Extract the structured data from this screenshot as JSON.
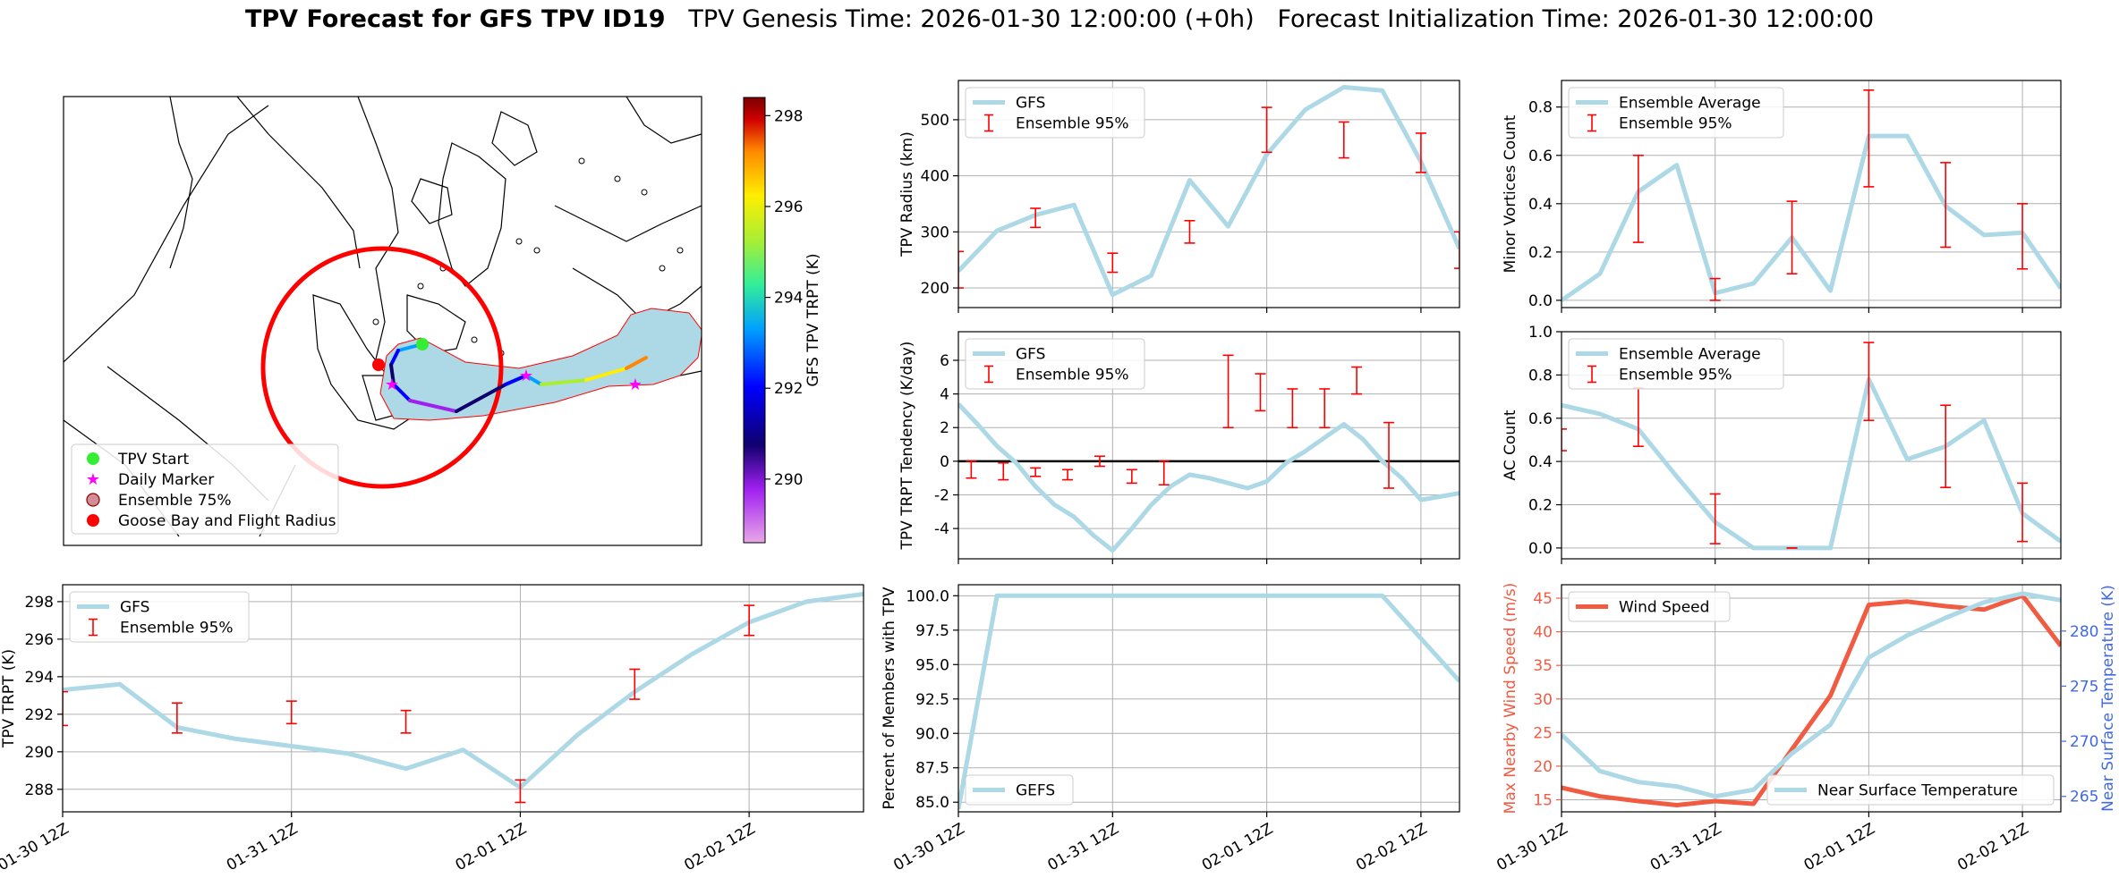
{
  "title": {
    "bold": "TPV Forecast for GFS TPV ID19",
    "genesis": "TPV Genesis Time: 2026-01-30 12:00:00 (+0h)",
    "init": "Forecast Initialization Time: 2026-01-30 12:00:00"
  },
  "colors": {
    "line": "#add8e6",
    "error": "#ff0000",
    "wind": "#f05b42",
    "temp_axis": "#4169e1",
    "circle": "#ff0000",
    "spread": "#add8e6",
    "daily": "#ff00ff",
    "start": "#33ee33"
  },
  "chart_data": [
    {
      "id": "map",
      "type": "map",
      "colorbar": {
        "label": "GFS TPV TRPT (K)",
        "range": [
          288.6,
          298.4
        ],
        "ticks": [
          290,
          292,
          294,
          296,
          298
        ]
      },
      "legend": [
        "TPV Start",
        "Daily Marker",
        "Ensemble 75%",
        "Goose Bay and Flight Radius"
      ],
      "track_trpt": [
        294.2,
        292.8,
        291.4,
        290.2,
        290.8,
        289.1,
        290.0,
        291.8,
        292.6,
        294.9,
        296.0,
        297.4
      ]
    },
    {
      "id": "radius",
      "type": "line",
      "ylabel": "TPV Radius (km)",
      "ylim": [
        165,
        570
      ],
      "yticks": [
        200,
        300,
        400,
        500
      ],
      "legend": [
        "GFS",
        "Ensemble 95%"
      ],
      "series": [
        {
          "name": "GFS",
          "x": [
            0,
            6,
            12,
            18,
            24,
            30,
            36,
            42,
            48,
            54,
            60,
            66,
            72,
            78
          ],
          "values": [
            230,
            302,
            330,
            348,
            188,
            222,
            392,
            310,
            438,
            518,
            558,
            552,
            425,
            270
          ]
        }
      ],
      "errorbars": [
        {
          "x": 0,
          "lo": 200,
          "hi": 265
        },
        {
          "x": 12,
          "lo": 308,
          "hi": 342
        },
        {
          "x": 24,
          "lo": 228,
          "hi": 262
        },
        {
          "x": 36,
          "lo": 280,
          "hi": 320
        },
        {
          "x": 48,
          "lo": 442,
          "hi": 522
        },
        {
          "x": 60,
          "lo": 432,
          "hi": 496
        },
        {
          "x": 72,
          "lo": 406,
          "hi": 476
        },
        {
          "x": 78,
          "lo": 235,
          "hi": 300
        }
      ]
    },
    {
      "id": "minor_vortices",
      "type": "line",
      "ylabel": "Minor Vortices Count",
      "ylim": [
        -0.03,
        0.91
      ],
      "yticks": [
        0.0,
        0.2,
        0.4,
        0.6,
        0.8
      ],
      "ytick_labels": [
        "0.0",
        "0.2",
        "0.4",
        "0.6",
        "0.8"
      ],
      "legend": [
        "Ensemble Average",
        "Ensemble 95%"
      ],
      "series": [
        {
          "name": "Ensemble Average",
          "x": [
            0,
            6,
            12,
            18,
            24,
            30,
            36,
            42,
            48,
            54,
            60,
            66,
            72,
            78
          ],
          "values": [
            0.0,
            0.11,
            0.45,
            0.56,
            0.03,
            0.07,
            0.26,
            0.04,
            0.68,
            0.68,
            0.39,
            0.27,
            0.28,
            0.05
          ]
        }
      ],
      "errorbars": [
        {
          "x": 12,
          "lo": 0.24,
          "hi": 0.6
        },
        {
          "x": 24,
          "lo": 0.0,
          "hi": 0.09
        },
        {
          "x": 36,
          "lo": 0.11,
          "hi": 0.41
        },
        {
          "x": 48,
          "lo": 0.47,
          "hi": 0.87
        },
        {
          "x": 60,
          "lo": 0.22,
          "hi": 0.57
        },
        {
          "x": 72,
          "lo": 0.13,
          "hi": 0.4
        }
      ]
    },
    {
      "id": "tendency",
      "type": "line",
      "ylabel": "TPV TRPT Tendency (K/day)",
      "ylim": [
        -5.8,
        7.7
      ],
      "yticks": [
        -4,
        -2,
        0,
        2,
        4,
        6
      ],
      "legend": [
        "GFS",
        "Ensemble 95%"
      ],
      "zero_line": true,
      "series": [
        {
          "name": "GFS",
          "x": [
            0,
            3,
            6,
            9,
            12,
            15,
            18,
            21,
            24,
            27,
            30,
            33,
            36,
            39,
            42,
            45,
            48,
            51,
            54,
            57,
            60,
            63,
            66,
            69,
            72,
            75,
            78
          ],
          "values": [
            3.4,
            2.2,
            0.9,
            -0.1,
            -1.5,
            -2.6,
            -3.3,
            -4.4,
            -5.3,
            -4.0,
            -2.6,
            -1.5,
            -0.8,
            -1.0,
            -1.3,
            -1.6,
            -1.2,
            -0.1,
            0.6,
            1.4,
            2.2,
            1.3,
            0.0,
            -1.0,
            -2.3,
            -2.1,
            -1.9
          ]
        }
      ],
      "errorbars": [
        {
          "x": 2,
          "lo": -1.0,
          "hi": 0.0
        },
        {
          "x": 7,
          "lo": -1.1,
          "hi": -0.1
        },
        {
          "x": 12,
          "lo": -0.9,
          "hi": -0.4
        },
        {
          "x": 17,
          "lo": -1.1,
          "hi": -0.5
        },
        {
          "x": 22,
          "lo": -0.3,
          "hi": 0.3
        },
        {
          "x": 27,
          "lo": -1.3,
          "hi": -0.5
        },
        {
          "x": 32,
          "lo": -1.4,
          "hi": 0.0
        },
        {
          "x": 42,
          "lo": 2.0,
          "hi": 6.3
        },
        {
          "x": 47,
          "lo": 3.0,
          "hi": 5.2
        },
        {
          "x": 52,
          "lo": 2.0,
          "hi": 4.3
        },
        {
          "x": 57,
          "lo": 2.0,
          "hi": 4.3
        },
        {
          "x": 62,
          "lo": 4.0,
          "hi": 5.6
        },
        {
          "x": 67,
          "lo": -1.6,
          "hi": 2.3
        }
      ]
    },
    {
      "id": "ac_count",
      "type": "line",
      "ylabel": "AC Count",
      "ylim": [
        -0.05,
        1.0
      ],
      "yticks": [
        0.0,
        0.2,
        0.4,
        0.6,
        0.8,
        1.0
      ],
      "ytick_labels": [
        "0.0",
        "0.2",
        "0.4",
        "0.6",
        "0.8",
        "1.0"
      ],
      "legend": [
        "Ensemble Average",
        "Ensemble 95%"
      ],
      "series": [
        {
          "name": "Ensemble Average",
          "x": [
            0,
            6,
            12,
            18,
            24,
            30,
            36,
            42,
            48,
            54,
            60,
            66,
            72,
            78
          ],
          "values": [
            0.66,
            0.62,
            0.55,
            0.33,
            0.12,
            0.0,
            0.0,
            0.0,
            0.78,
            0.41,
            0.47,
            0.59,
            0.16,
            0.03
          ]
        }
      ],
      "errorbars": [
        {
          "x": 0,
          "lo": 0.45,
          "hi": 0.55
        },
        {
          "x": 12,
          "lo": 0.47,
          "hi": 0.74
        },
        {
          "x": 24,
          "lo": 0.02,
          "hi": 0.25
        },
        {
          "x": 36,
          "lo": 0.0,
          "hi": 0.0
        },
        {
          "x": 48,
          "lo": 0.59,
          "hi": 0.95
        },
        {
          "x": 60,
          "lo": 0.28,
          "hi": 0.66
        },
        {
          "x": 72,
          "lo": 0.03,
          "hi": 0.3
        }
      ]
    },
    {
      "id": "trpt",
      "type": "line",
      "ylabel": "TPV TRPT (K)",
      "ylim": [
        286.8,
        298.9
      ],
      "yticks": [
        288,
        290,
        292,
        294,
        296,
        298
      ],
      "legend": [
        "GFS",
        "Ensemble 95%"
      ],
      "xticks": [
        0,
        24,
        48,
        72
      ],
      "xtick_labels": [
        "01-30 12Z",
        "01-31 12Z",
        "02-01 12Z",
        "02-02 12Z"
      ],
      "xlim": [
        0,
        84
      ],
      "series": [
        {
          "name": "GFS",
          "x": [
            0,
            6,
            12,
            18,
            24,
            30,
            36,
            42,
            48,
            54,
            60,
            66,
            72,
            78,
            84
          ],
          "values": [
            293.3,
            293.6,
            291.3,
            290.7,
            290.3,
            289.9,
            289.1,
            290.1,
            288.1,
            290.9,
            293.2,
            295.2,
            296.9,
            298.0,
            298.4
          ]
        }
      ],
      "errorbars": [
        {
          "x": 0,
          "lo": 291.4,
          "hi": 293.2
        },
        {
          "x": 12,
          "lo": 291.0,
          "hi": 292.6
        },
        {
          "x": 24,
          "lo": 291.5,
          "hi": 292.7
        },
        {
          "x": 36,
          "lo": 291.0,
          "hi": 292.2
        },
        {
          "x": 48,
          "lo": 287.3,
          "hi": 288.5
        },
        {
          "x": 60,
          "lo": 292.8,
          "hi": 294.4
        },
        {
          "x": 72,
          "lo": 296.2,
          "hi": 297.8
        }
      ]
    },
    {
      "id": "members",
      "type": "line",
      "ylabel": "Percent of Members with TPV",
      "ylim": [
        84.3,
        100.8
      ],
      "yticks": [
        85.0,
        87.5,
        90.0,
        92.5,
        95.0,
        97.5,
        100.0
      ],
      "ytick_labels": [
        "85.0",
        "87.5",
        "90.0",
        "92.5",
        "95.0",
        "97.5",
        "100.0"
      ],
      "legend": [
        "GEFS"
      ],
      "xticks": [
        0,
        24,
        48,
        72
      ],
      "xtick_labels": [
        "01-30 12Z",
        "01-31 12Z",
        "02-01 12Z",
        "02-02 12Z"
      ],
      "series": [
        {
          "name": "GEFS",
          "x": [
            0,
            6,
            66,
            78
          ],
          "values": [
            84.5,
            100.0,
            100.0,
            93.8
          ]
        }
      ]
    },
    {
      "id": "wind_temp",
      "type": "line",
      "ylabel": "Max Nearby Wind Speed (m/s)",
      "ylabel_right": "Near Surface Temperature (K)",
      "ylim": [
        13.2,
        47.0
      ],
      "ylim_right": [
        263.6,
        284.2
      ],
      "yticks": [
        15,
        20,
        25,
        30,
        35,
        40,
        45
      ],
      "yticks_right": [
        265,
        270,
        275,
        280
      ],
      "legend": [
        "Wind Speed"
      ],
      "legend_right": [
        "Near Surface Temperature"
      ],
      "xticks": [
        0,
        24,
        48,
        72
      ],
      "xtick_labels": [
        "01-30 12Z",
        "01-31 12Z",
        "02-01 12Z",
        "02-02 12Z"
      ],
      "series": [
        {
          "name": "Wind Speed",
          "axis": "left",
          "x": [
            0,
            6,
            12,
            18,
            24,
            30,
            36,
            42,
            48,
            54,
            60,
            66,
            72,
            78
          ],
          "values": [
            16.8,
            15.5,
            14.8,
            14.2,
            14.8,
            14.4,
            22.5,
            30.5,
            44.0,
            44.5,
            43.8,
            43.3,
            45.4,
            37.9
          ]
        },
        {
          "name": "Near Surface Temperature",
          "axis": "right",
          "x": [
            0,
            6,
            12,
            18,
            24,
            30,
            36,
            42,
            48,
            54,
            60,
            66,
            72,
            78
          ],
          "values": [
            270.6,
            267.3,
            266.3,
            265.9,
            265.0,
            265.6,
            268.9,
            271.5,
            277.6,
            279.6,
            281.2,
            282.6,
            283.4,
            282.8
          ]
        }
      ]
    }
  ]
}
